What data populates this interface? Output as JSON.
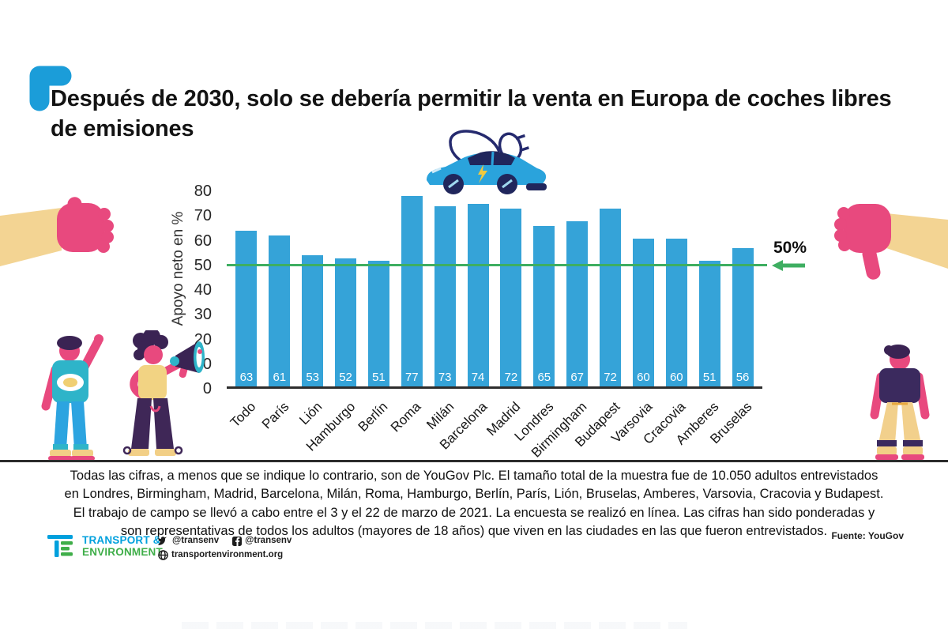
{
  "title": "Después de 2030, solo se debería permitir la venta en Europa de coches libres de emisiones",
  "chart_data": {
    "type": "bar",
    "categories": [
      "Todo",
      "París",
      "Lión",
      "Hamburgo",
      "Berlín",
      "Roma",
      "Milán",
      "Barcelona",
      "Madrid",
      "Londres",
      "Birmingham",
      "Budapest",
      "Varsovia",
      "Cracovia",
      "Amberes",
      "Bruselas"
    ],
    "values": [
      63,
      61,
      53,
      52,
      51,
      77,
      73,
      74,
      72,
      65,
      67,
      72,
      60,
      60,
      51,
      56
    ],
    "title": "",
    "xlabel": "",
    "ylabel": "Apoyo neto en %",
    "ylim": [
      0,
      80
    ],
    "yticks": [
      0,
      10,
      20,
      30,
      40,
      50,
      60,
      70,
      80
    ],
    "grid": false,
    "legend": "none",
    "bar_color": "#35a3d8",
    "bar_label_color": "#ffffff",
    "axis_color": "#2d2d2d",
    "reference_line": {
      "value": 50,
      "label": "50%",
      "color": "#3eae61"
    }
  },
  "footer": {
    "note": "Todas las cifras, a menos que se indique lo contrario, son de YouGov Plc. El tamaño total de la muestra fue de 10.050 adultos entrevistados en Londres, Birmingham, Madrid, Barcelona, Milán, Roma, Hamburgo, Berlín, París, Lión, Bruselas, Amberes, Varsovia, Cracovia y Budapest. El trabajo de campo se llevó a cabo entre el 3 y el 22 de marzo de 2021. La encuesta se realizó en línea. Las cifras han sido ponderadas y son representativas de todos los adultos (mayores de 18 años) que viven en las ciudades en las que fueron entrevistados.",
    "source": "Fuente: YouGov"
  },
  "logo": {
    "line1": "TRANSPORT &",
    "line2": "ENVIRONMENT"
  },
  "social": {
    "twitter_handle": "@transenv",
    "facebook_handle": "@transenv",
    "website": "transportenvironment.org"
  },
  "colors": {
    "accent_blue": "#1b9dd9",
    "bar_blue": "#35a3d8",
    "green": "#3eae61",
    "pink": "#e8497e",
    "tan": "#f3d493",
    "teal": "#2eb4c9",
    "jeans_blue": "#2ca4e0",
    "dark_purple": "#3b2a5e",
    "navy": "#20265c",
    "yellow": "#f0cf72",
    "red": "#e2574c"
  }
}
